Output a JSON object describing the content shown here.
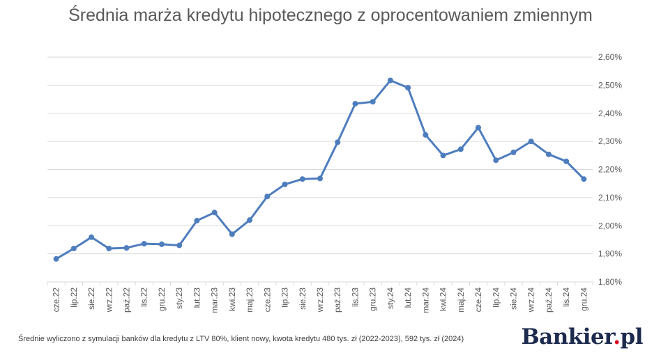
{
  "header": {
    "title": "Średnia marża kredytu hipotecznego z oprocentowaniem zmiennym"
  },
  "footer": {
    "note": "Średnie wyliczono z symulacji banków dla kredytu z LTV 80%, klient nowy, kwota kredytu 480 tys. zł (2022-2023), 592 tys. zł (2024)",
    "brand_main": "Bankier",
    "brand_dot": ".",
    "brand_tld": "pl"
  },
  "colors": {
    "line": "#4e7dbe",
    "grid": "#d9d9d9",
    "brand": "#1c2a4d",
    "brand_accent": "#e2001a"
  },
  "chart_data": {
    "type": "line",
    "title": "Średnia marża kredytu hipotecznego z oprocentowaniem zmiennym",
    "xlabel": "",
    "ylabel": "",
    "ylim": [
      1.8,
      2.6
    ],
    "y_ticks": [
      1.8,
      1.9,
      2.0,
      2.1,
      2.2,
      2.3,
      2.4,
      2.5,
      2.6
    ],
    "y_tick_labels": [
      "1,80%",
      "1,90%",
      "2,00%",
      "2,10%",
      "2,20%",
      "2,30%",
      "2,40%",
      "2,50%",
      "2,60%"
    ],
    "y_axis_side": "right",
    "grid": "horizontal",
    "legend": "none",
    "categories": [
      "cze.22",
      "lip.22",
      "sie.22",
      "wrz.22",
      "paź.22",
      "lis.22",
      "gru.22",
      "sty.23",
      "lut.23",
      "mar.23",
      "kwi.23",
      "maj.23",
      "cze.23",
      "lip.23",
      "sie.23",
      "wrz.23",
      "paź.23",
      "lis.23",
      "gru.23",
      "sty.24",
      "lut.24",
      "mar.24",
      "kwi.24",
      "maj.24",
      "cze.24",
      "lip.24",
      "sie.24",
      "wrz.24",
      "paź.24",
      "lis.24",
      "gru.24"
    ],
    "series": [
      {
        "values": [
          1.882,
          1.919,
          1.959,
          1.919,
          1.921,
          1.936,
          1.934,
          1.93,
          2.018,
          2.047,
          1.97,
          2.02,
          2.104,
          2.147,
          2.166,
          2.168,
          2.297,
          2.434,
          2.441,
          2.517,
          2.491,
          2.323,
          2.25,
          2.272,
          2.349,
          2.233,
          2.261,
          2.3,
          2.254,
          2.229,
          2.166
        ]
      }
    ]
  }
}
